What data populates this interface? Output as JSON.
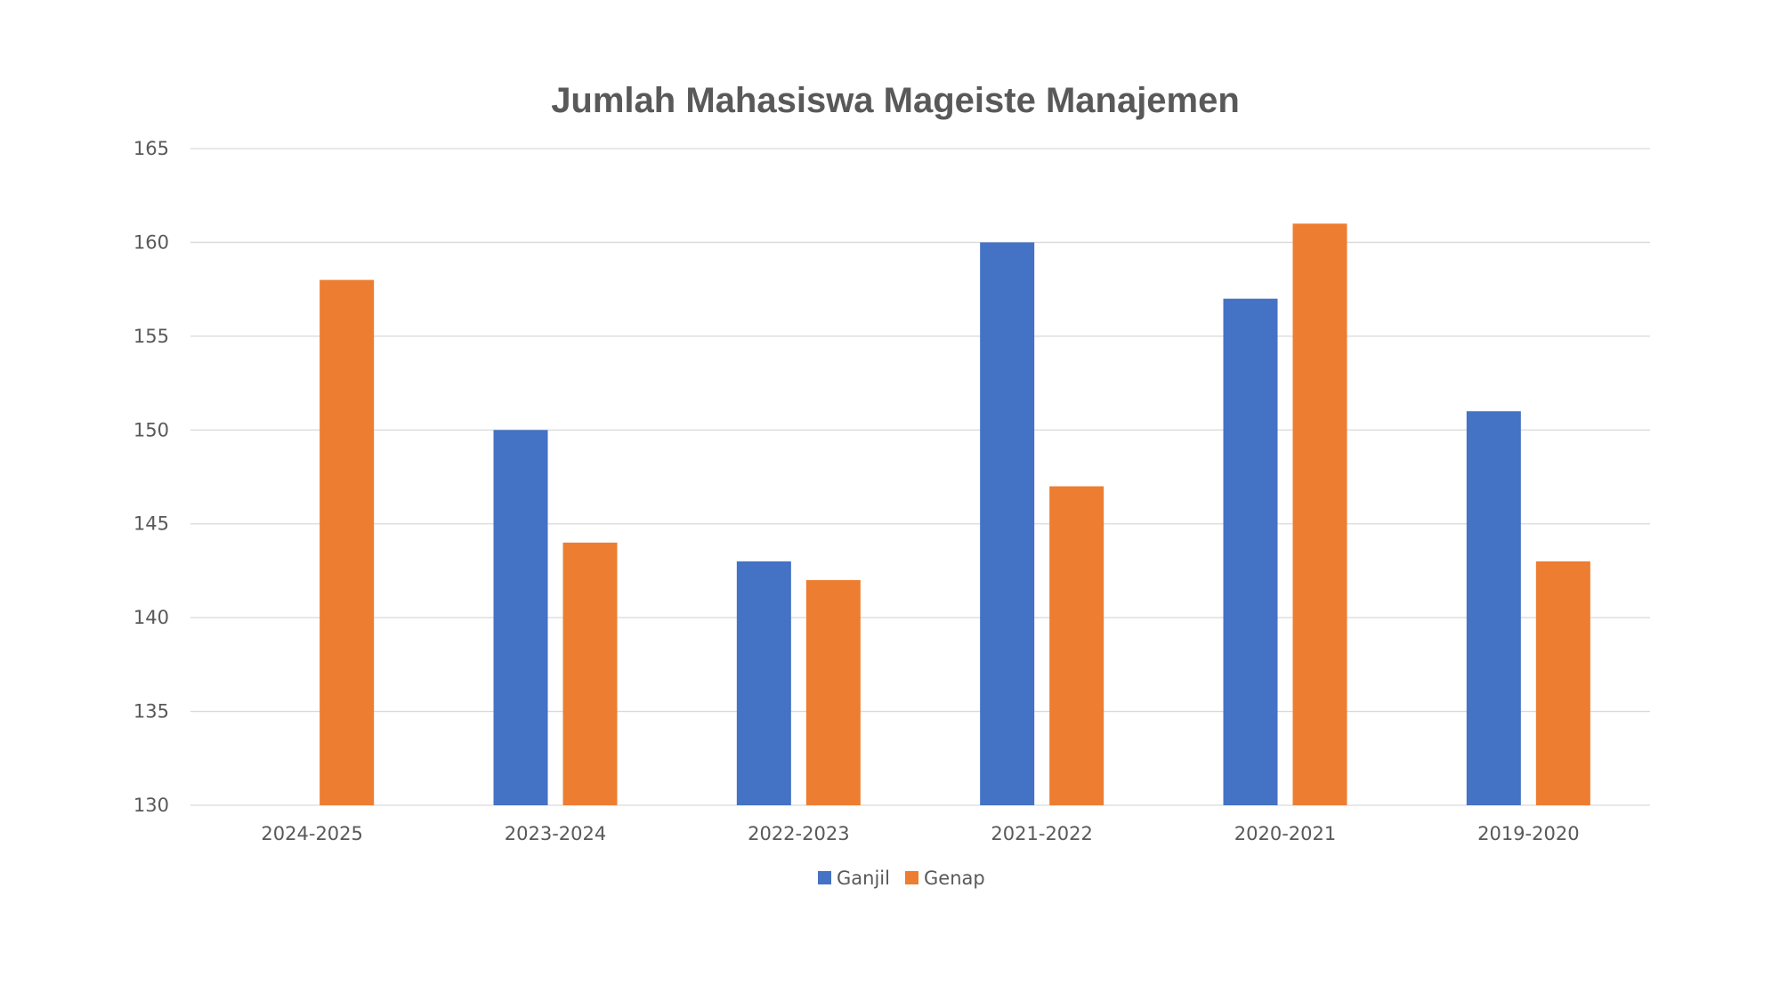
{
  "chart_data": {
    "type": "bar",
    "title": "Jumlah Mahasiswa Mageiste Manajemen",
    "xlabel": "",
    "ylabel": "",
    "categories": [
      "2024-2025",
      "2023-2024",
      "2022-2023",
      "2021-2022",
      "2020-2021",
      "2019-2020"
    ],
    "series": [
      {
        "name": "Ganjil",
        "values": [
          null,
          150,
          143,
          160,
          157,
          151
        ],
        "color": "#4472C4"
      },
      {
        "name": "Genap",
        "values": [
          158,
          144,
          142,
          147,
          161,
          143
        ],
        "color": "#ED7D31"
      }
    ],
    "ylim": [
      130,
      165
    ],
    "yticks": [
      130,
      135,
      140,
      145,
      150,
      155,
      160,
      165
    ],
    "grid": true,
    "legend_position": "bottom"
  }
}
